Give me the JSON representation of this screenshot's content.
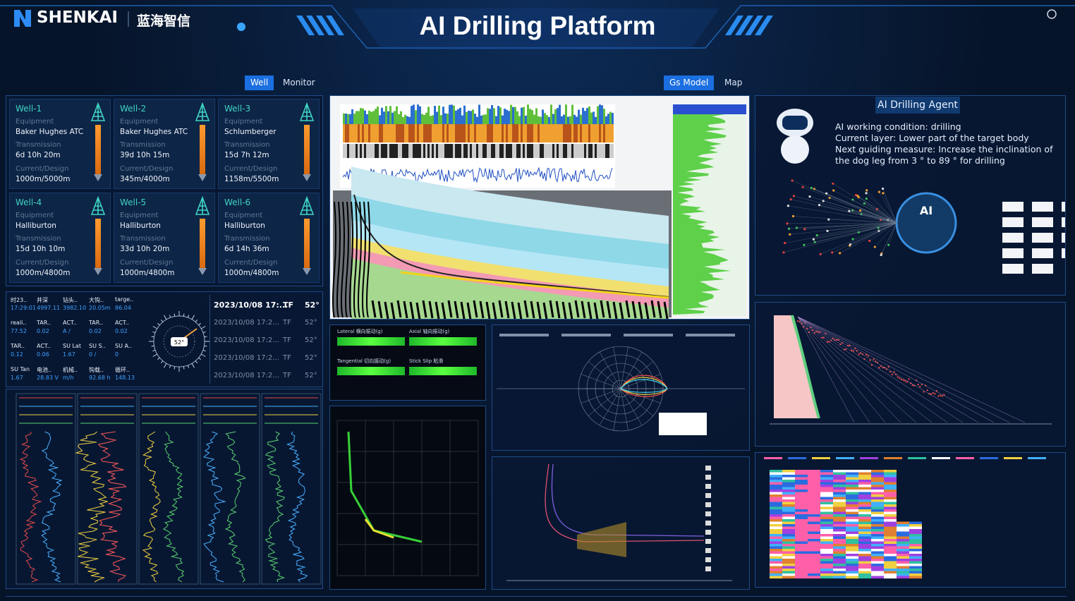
{
  "header": {
    "brand": "SHENKAI",
    "brand_cn": "蓝海智信",
    "title": "AI Drilling Platform"
  },
  "tabs_left": [
    "Well",
    "Monitor"
  ],
  "tabs_right": [
    "Gs Model",
    "Map"
  ],
  "well_labels": {
    "equipment": "Equipment",
    "transmission": "Transmission",
    "current_design": "Current/Design"
  },
  "wells": [
    {
      "name": "Well-1",
      "equipment": "Baker Hughes ATC",
      "transmission": "6d 10h 20m",
      "current_design": "1000m/5000m"
    },
    {
      "name": "Well-2",
      "equipment": "Baker Hughes ATC",
      "transmission": "39d 10h 15m",
      "current_design": "345m/4000m"
    },
    {
      "name": "Well-3",
      "equipment": "Schlumberger",
      "transmission": "15d 7h 12m",
      "current_design": "1158m/5500m"
    },
    {
      "name": "Well-4",
      "equipment": "Halliburton",
      "transmission": "15d 10h 10m",
      "current_design": "1000m/4800m"
    },
    {
      "name": "Well-5",
      "equipment": "Halliburton",
      "transmission": "33d 10h 20m",
      "current_design": "1000m/4800m"
    },
    {
      "name": "Well-6",
      "equipment": "Halliburton",
      "transmission": "6d 14h 36m",
      "current_design": "1000m/4800m"
    }
  ],
  "status_table": [
    [
      [
        "时23..",
        "17:29:01"
      ],
      [
        "井深",
        "4997.11"
      ],
      [
        "钻头..",
        "3982.10"
      ],
      [
        "大钩..",
        "20.05m"
      ],
      [
        "targe..",
        "86.04"
      ]
    ],
    [
      [
        "reali..",
        "77.52"
      ],
      [
        "TAR..",
        "0.02"
      ],
      [
        "ACT..",
        "A /"
      ],
      [
        "TAR..",
        "0.02"
      ],
      [
        "ACT..",
        "0.02"
      ]
    ],
    [
      [
        "TAR..",
        "0.12"
      ],
      [
        "ACT..",
        "0.06"
      ],
      [
        "SU Lat",
        "1.67"
      ],
      [
        "SU S..",
        "0 /"
      ],
      [
        "SU A..",
        "0"
      ]
    ],
    [
      [
        "SU Tan",
        "1.67"
      ],
      [
        "电池..",
        "28.83 V"
      ],
      [
        "机械..",
        "m/h"
      ],
      [
        "钩载..",
        "92.68 h"
      ],
      [
        "循环..",
        "148.13"
      ]
    ]
  ],
  "compass_value": "52°",
  "toolface": {
    "header": [
      "2023/10/08 17:...",
      "TF",
      "52°"
    ],
    "rows": [
      [
        "2023/10/08 17:2...",
        "TF",
        "52°"
      ],
      [
        "2023/10/08 17:2...",
        "TF",
        "52°"
      ],
      [
        "2023/10/08 17:2...",
        "TF",
        "52°"
      ],
      [
        "2023/10/08 17:2...",
        "TF",
        "52°"
      ]
    ]
  },
  "vibration": [
    "Lateral 横向振动(g)",
    "Axial 轴向振动(g)",
    "Tangential 切向振动(g)",
    "Stick Slip 粘滑"
  ],
  "agent": {
    "title": "AI Drilling Agent",
    "badge": "AI",
    "lines": [
      "AI working condition: drilling",
      "Current layer: Lower part of the target body",
      "Next guiding measure: Increase the inclination of the dog leg from 3 ° to 89 ° for drilling"
    ]
  }
}
